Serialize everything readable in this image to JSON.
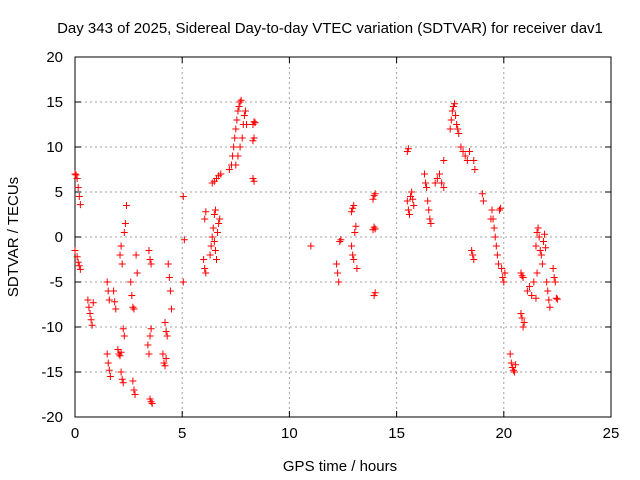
{
  "chart_data": {
    "type": "scatter",
    "title": "Day 343 of 2025, Sidereal Day-to-day VTEC variation (SDTVAR) for receiver dav1",
    "xlabel": "GPS time / hours",
    "ylabel": "SDTVAR / TECUs",
    "xlim": [
      0,
      25
    ],
    "ylim": [
      -20,
      20
    ],
    "xticks": [
      0,
      5,
      10,
      15,
      20,
      25
    ],
    "yticks": [
      -20,
      -15,
      -10,
      -5,
      0,
      5,
      10,
      15,
      20
    ],
    "grid": true,
    "marker": "+",
    "color": "#ff0000",
    "series": [
      {
        "name": "SDTVAR",
        "points": [
          [
            0.0,
            7.0
          ],
          [
            0.05,
            6.9
          ],
          [
            0.1,
            6.5
          ],
          [
            0.15,
            5.5
          ],
          [
            0.2,
            4.5
          ],
          [
            0.25,
            3.6
          ],
          [
            0.0,
            -1.5
          ],
          [
            0.1,
            -2.2
          ],
          [
            0.15,
            -2.8
          ],
          [
            0.2,
            -3.2
          ],
          [
            0.25,
            -3.6
          ],
          [
            0.6,
            -7.0
          ],
          [
            0.65,
            -7.8
          ],
          [
            0.7,
            -8.5
          ],
          [
            0.75,
            -9.2
          ],
          [
            0.8,
            -9.8
          ],
          [
            0.85,
            -7.3
          ],
          [
            1.5,
            -5.0
          ],
          [
            1.55,
            -6.0
          ],
          [
            1.6,
            -7.0
          ],
          [
            1.5,
            -13.0
          ],
          [
            1.55,
            -14.0
          ],
          [
            1.6,
            -14.8
          ],
          [
            1.65,
            -15.5
          ],
          [
            1.8,
            -6.0
          ],
          [
            1.85,
            -7.2
          ],
          [
            1.9,
            -8.0
          ],
          [
            2.0,
            -12.5
          ],
          [
            2.05,
            -13.0
          ],
          [
            2.1,
            -13.2
          ],
          [
            2.15,
            -12.8
          ],
          [
            2.1,
            -2.0
          ],
          [
            2.15,
            -1.0
          ],
          [
            2.2,
            -3.0
          ],
          [
            2.15,
            -15.0
          ],
          [
            2.2,
            -15.8
          ],
          [
            2.25,
            -16.2
          ],
          [
            2.25,
            -10.2
          ],
          [
            2.3,
            -11.0
          ],
          [
            2.3,
            0.5
          ],
          [
            2.35,
            1.5
          ],
          [
            2.4,
            3.5
          ],
          [
            2.6,
            -5.0
          ],
          [
            2.65,
            -6.5
          ],
          [
            2.7,
            -7.8
          ],
          [
            2.75,
            -8.0
          ],
          [
            2.7,
            -16.0
          ],
          [
            2.75,
            -17.0
          ],
          [
            2.8,
            -17.5
          ],
          [
            2.85,
            -2.0
          ],
          [
            2.9,
            -4.0
          ],
          [
            3.4,
            -12.0
          ],
          [
            3.45,
            -13.0
          ],
          [
            3.5,
            -11.0
          ],
          [
            3.55,
            -10.2
          ],
          [
            3.45,
            -1.5
          ],
          [
            3.5,
            -2.5
          ],
          [
            3.55,
            -3.0
          ],
          [
            3.5,
            -18.0
          ],
          [
            3.55,
            -18.3
          ],
          [
            3.6,
            -18.5
          ],
          [
            4.1,
            -13.0
          ],
          [
            4.15,
            -14.0
          ],
          [
            4.2,
            -14.3
          ],
          [
            4.25,
            -13.5
          ],
          [
            4.2,
            -9.5
          ],
          [
            4.25,
            -10.5
          ],
          [
            4.3,
            -11.0
          ],
          [
            4.35,
            -3.0
          ],
          [
            4.4,
            -4.5
          ],
          [
            4.45,
            -6.0
          ],
          [
            4.5,
            -8.0
          ],
          [
            5.05,
            4.5
          ],
          [
            5.1,
            -0.3
          ],
          [
            5.05,
            -5.0
          ],
          [
            6.0,
            -2.5
          ],
          [
            6.05,
            -3.5
          ],
          [
            6.1,
            -4.0
          ],
          [
            6.05,
            2.0
          ],
          [
            6.1,
            2.8
          ],
          [
            6.3,
            -2.0
          ],
          [
            6.35,
            -1.0
          ],
          [
            6.4,
            0.0
          ],
          [
            6.45,
            1.0
          ],
          [
            6.5,
            -0.5
          ],
          [
            6.55,
            -1.5
          ],
          [
            6.6,
            -2.5
          ],
          [
            6.65,
            0.5
          ],
          [
            6.7,
            1.5
          ],
          [
            6.75,
            2.0
          ],
          [
            6.5,
            2.5
          ],
          [
            6.55,
            3.0
          ],
          [
            6.4,
            6.0
          ],
          [
            6.5,
            6.2
          ],
          [
            6.6,
            6.5
          ],
          [
            6.7,
            6.8
          ],
          [
            6.8,
            7.0
          ],
          [
            7.2,
            7.5
          ],
          [
            7.3,
            8.0
          ],
          [
            7.35,
            9.0
          ],
          [
            7.4,
            10.0
          ],
          [
            7.45,
            11.0
          ],
          [
            7.5,
            12.0
          ],
          [
            7.55,
            13.0
          ],
          [
            7.6,
            14.0
          ],
          [
            7.65,
            14.5
          ],
          [
            7.7,
            15.0
          ],
          [
            7.75,
            15.2
          ],
          [
            7.5,
            8.0
          ],
          [
            7.6,
            9.0
          ],
          [
            7.7,
            10.0
          ],
          [
            7.8,
            11.0
          ],
          [
            7.85,
            12.5
          ],
          [
            7.9,
            13.5
          ],
          [
            7.95,
            14.0
          ],
          [
            8.0,
            12.5
          ],
          [
            8.3,
            12.5
          ],
          [
            8.35,
            12.8
          ],
          [
            8.4,
            12.7
          ],
          [
            8.3,
            10.7
          ],
          [
            8.35,
            11.0
          ],
          [
            8.3,
            6.5
          ],
          [
            8.35,
            6.2
          ],
          [
            11.0,
            -1.0
          ],
          [
            12.2,
            -3.0
          ],
          [
            12.25,
            -4.0
          ],
          [
            12.3,
            -5.0
          ],
          [
            12.35,
            -0.5
          ],
          [
            12.4,
            -0.3
          ],
          [
            12.9,
            -1.0
          ],
          [
            12.95,
            -2.0
          ],
          [
            13.0,
            -2.5
          ],
          [
            13.05,
            0.5
          ],
          [
            13.1,
            1.2
          ],
          [
            13.15,
            -3.5
          ],
          [
            12.9,
            2.8
          ],
          [
            12.95,
            3.2
          ],
          [
            13.0,
            3.5
          ],
          [
            13.9,
            4.2
          ],
          [
            13.95,
            4.6
          ],
          [
            14.0,
            4.8
          ],
          [
            13.9,
            0.8
          ],
          [
            13.95,
            1.1
          ],
          [
            14.0,
            0.9
          ],
          [
            13.95,
            -6.5
          ],
          [
            14.0,
            -6.2
          ],
          [
            15.5,
            9.5
          ],
          [
            15.55,
            9.8
          ],
          [
            15.5,
            4.0
          ],
          [
            15.55,
            3.0
          ],
          [
            15.6,
            2.5
          ],
          [
            15.65,
            4.5
          ],
          [
            15.7,
            5.0
          ],
          [
            15.75,
            4.2
          ],
          [
            15.8,
            3.5
          ],
          [
            16.3,
            7.0
          ],
          [
            16.35,
            6.0
          ],
          [
            16.4,
            5.5
          ],
          [
            16.45,
            4.0
          ],
          [
            16.5,
            3.0
          ],
          [
            16.55,
            2.0
          ],
          [
            16.6,
            1.5
          ],
          [
            16.8,
            6.0
          ],
          [
            16.9,
            6.5
          ],
          [
            17.0,
            7.0
          ],
          [
            17.1,
            6.0
          ],
          [
            17.2,
            5.5
          ],
          [
            17.2,
            8.5
          ],
          [
            17.5,
            12.0
          ],
          [
            17.55,
            13.0
          ],
          [
            17.6,
            14.0
          ],
          [
            17.65,
            14.5
          ],
          [
            17.7,
            14.8
          ],
          [
            17.75,
            13.5
          ],
          [
            17.8,
            12.5
          ],
          [
            17.85,
            12.0
          ],
          [
            17.9,
            11.5
          ],
          [
            18.0,
            10.0
          ],
          [
            18.1,
            9.5
          ],
          [
            18.2,
            9.0
          ],
          [
            18.3,
            8.5
          ],
          [
            18.4,
            9.5
          ],
          [
            18.6,
            8.5
          ],
          [
            18.65,
            7.5
          ],
          [
            18.5,
            -1.5
          ],
          [
            18.55,
            -2.0
          ],
          [
            18.6,
            -2.5
          ],
          [
            19.0,
            4.8
          ],
          [
            19.05,
            4.0
          ],
          [
            19.4,
            2.0
          ],
          [
            19.45,
            3.0
          ],
          [
            19.5,
            2.0
          ],
          [
            19.55,
            1.0
          ],
          [
            19.6,
            0.0
          ],
          [
            19.65,
            -1.0
          ],
          [
            19.7,
            -2.0
          ],
          [
            19.75,
            -3.0
          ],
          [
            19.8,
            3.0
          ],
          [
            19.85,
            3.2
          ],
          [
            19.9,
            -3.5
          ],
          [
            19.95,
            -4.5
          ],
          [
            20.0,
            -5.0
          ],
          [
            20.05,
            -4.0
          ],
          [
            20.3,
            -13.0
          ],
          [
            20.35,
            -14.0
          ],
          [
            20.4,
            -14.5
          ],
          [
            20.45,
            -14.8
          ],
          [
            20.5,
            -15.0
          ],
          [
            20.55,
            -14.2
          ],
          [
            20.8,
            -4.0
          ],
          [
            20.85,
            -4.3
          ],
          [
            20.9,
            -4.5
          ],
          [
            20.8,
            -8.5
          ],
          [
            20.85,
            -9.0
          ],
          [
            20.9,
            -10.0
          ],
          [
            20.95,
            -9.5
          ],
          [
            21.1,
            -6.0
          ],
          [
            21.2,
            -5.5
          ],
          [
            21.3,
            -6.5
          ],
          [
            21.4,
            -5.0
          ],
          [
            21.5,
            -6.8
          ],
          [
            21.55,
            -4.0
          ],
          [
            21.5,
            -1.0
          ],
          [
            21.55,
            0.5
          ],
          [
            21.6,
            1.0
          ],
          [
            21.65,
            0.0
          ],
          [
            21.7,
            -1.5
          ],
          [
            21.75,
            -2.0
          ],
          [
            21.8,
            -3.0
          ],
          [
            21.85,
            -0.5
          ],
          [
            21.9,
            0.3
          ],
          [
            21.95,
            -1.2
          ],
          [
            22.0,
            -5.0
          ],
          [
            22.05,
            -6.0
          ],
          [
            22.1,
            -7.0
          ],
          [
            22.15,
            -7.8
          ],
          [
            22.3,
            -3.5
          ],
          [
            22.35,
            -4.5
          ],
          [
            22.4,
            -5.0
          ],
          [
            22.45,
            -6.8
          ],
          [
            22.5,
            -6.9
          ]
        ]
      }
    ]
  }
}
